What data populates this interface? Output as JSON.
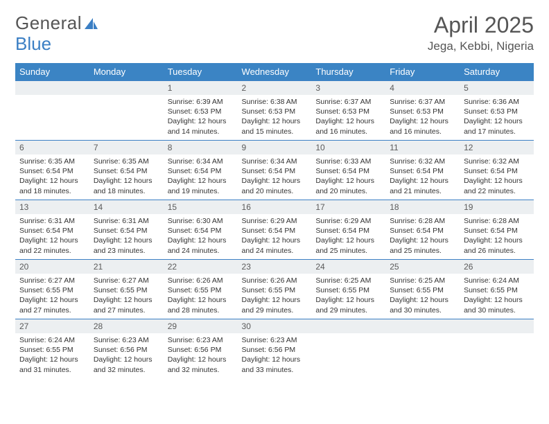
{
  "logo": {
    "text1": "General",
    "text2": "Blue"
  },
  "title": "April 2025",
  "location": "Jega, Kebbi, Nigeria",
  "colors": {
    "header_bg": "#3b84c4",
    "header_text": "#ffffff",
    "daynum_bg": "#eceff1",
    "border": "#3b7fc4",
    "text": "#333333",
    "title_text": "#555555"
  },
  "weekdays": [
    "Sunday",
    "Monday",
    "Tuesday",
    "Wednesday",
    "Thursday",
    "Friday",
    "Saturday"
  ],
  "weeks": [
    [
      null,
      null,
      {
        "n": "1",
        "sr": "Sunrise: 6:39 AM",
        "ss": "Sunset: 6:53 PM",
        "dl": "Daylight: 12 hours and 14 minutes."
      },
      {
        "n": "2",
        "sr": "Sunrise: 6:38 AM",
        "ss": "Sunset: 6:53 PM",
        "dl": "Daylight: 12 hours and 15 minutes."
      },
      {
        "n": "3",
        "sr": "Sunrise: 6:37 AM",
        "ss": "Sunset: 6:53 PM",
        "dl": "Daylight: 12 hours and 16 minutes."
      },
      {
        "n": "4",
        "sr": "Sunrise: 6:37 AM",
        "ss": "Sunset: 6:53 PM",
        "dl": "Daylight: 12 hours and 16 minutes."
      },
      {
        "n": "5",
        "sr": "Sunrise: 6:36 AM",
        "ss": "Sunset: 6:53 PM",
        "dl": "Daylight: 12 hours and 17 minutes."
      }
    ],
    [
      {
        "n": "6",
        "sr": "Sunrise: 6:35 AM",
        "ss": "Sunset: 6:54 PM",
        "dl": "Daylight: 12 hours and 18 minutes."
      },
      {
        "n": "7",
        "sr": "Sunrise: 6:35 AM",
        "ss": "Sunset: 6:54 PM",
        "dl": "Daylight: 12 hours and 18 minutes."
      },
      {
        "n": "8",
        "sr": "Sunrise: 6:34 AM",
        "ss": "Sunset: 6:54 PM",
        "dl": "Daylight: 12 hours and 19 minutes."
      },
      {
        "n": "9",
        "sr": "Sunrise: 6:34 AM",
        "ss": "Sunset: 6:54 PM",
        "dl": "Daylight: 12 hours and 20 minutes."
      },
      {
        "n": "10",
        "sr": "Sunrise: 6:33 AM",
        "ss": "Sunset: 6:54 PM",
        "dl": "Daylight: 12 hours and 20 minutes."
      },
      {
        "n": "11",
        "sr": "Sunrise: 6:32 AM",
        "ss": "Sunset: 6:54 PM",
        "dl": "Daylight: 12 hours and 21 minutes."
      },
      {
        "n": "12",
        "sr": "Sunrise: 6:32 AM",
        "ss": "Sunset: 6:54 PM",
        "dl": "Daylight: 12 hours and 22 minutes."
      }
    ],
    [
      {
        "n": "13",
        "sr": "Sunrise: 6:31 AM",
        "ss": "Sunset: 6:54 PM",
        "dl": "Daylight: 12 hours and 22 minutes."
      },
      {
        "n": "14",
        "sr": "Sunrise: 6:31 AM",
        "ss": "Sunset: 6:54 PM",
        "dl": "Daylight: 12 hours and 23 minutes."
      },
      {
        "n": "15",
        "sr": "Sunrise: 6:30 AM",
        "ss": "Sunset: 6:54 PM",
        "dl": "Daylight: 12 hours and 24 minutes."
      },
      {
        "n": "16",
        "sr": "Sunrise: 6:29 AM",
        "ss": "Sunset: 6:54 PM",
        "dl": "Daylight: 12 hours and 24 minutes."
      },
      {
        "n": "17",
        "sr": "Sunrise: 6:29 AM",
        "ss": "Sunset: 6:54 PM",
        "dl": "Daylight: 12 hours and 25 minutes."
      },
      {
        "n": "18",
        "sr": "Sunrise: 6:28 AM",
        "ss": "Sunset: 6:54 PM",
        "dl": "Daylight: 12 hours and 25 minutes."
      },
      {
        "n": "19",
        "sr": "Sunrise: 6:28 AM",
        "ss": "Sunset: 6:54 PM",
        "dl": "Daylight: 12 hours and 26 minutes."
      }
    ],
    [
      {
        "n": "20",
        "sr": "Sunrise: 6:27 AM",
        "ss": "Sunset: 6:55 PM",
        "dl": "Daylight: 12 hours and 27 minutes."
      },
      {
        "n": "21",
        "sr": "Sunrise: 6:27 AM",
        "ss": "Sunset: 6:55 PM",
        "dl": "Daylight: 12 hours and 27 minutes."
      },
      {
        "n": "22",
        "sr": "Sunrise: 6:26 AM",
        "ss": "Sunset: 6:55 PM",
        "dl": "Daylight: 12 hours and 28 minutes."
      },
      {
        "n": "23",
        "sr": "Sunrise: 6:26 AM",
        "ss": "Sunset: 6:55 PM",
        "dl": "Daylight: 12 hours and 29 minutes."
      },
      {
        "n": "24",
        "sr": "Sunrise: 6:25 AM",
        "ss": "Sunset: 6:55 PM",
        "dl": "Daylight: 12 hours and 29 minutes."
      },
      {
        "n": "25",
        "sr": "Sunrise: 6:25 AM",
        "ss": "Sunset: 6:55 PM",
        "dl": "Daylight: 12 hours and 30 minutes."
      },
      {
        "n": "26",
        "sr": "Sunrise: 6:24 AM",
        "ss": "Sunset: 6:55 PM",
        "dl": "Daylight: 12 hours and 30 minutes."
      }
    ],
    [
      {
        "n": "27",
        "sr": "Sunrise: 6:24 AM",
        "ss": "Sunset: 6:55 PM",
        "dl": "Daylight: 12 hours and 31 minutes."
      },
      {
        "n": "28",
        "sr": "Sunrise: 6:23 AM",
        "ss": "Sunset: 6:56 PM",
        "dl": "Daylight: 12 hours and 32 minutes."
      },
      {
        "n": "29",
        "sr": "Sunrise: 6:23 AM",
        "ss": "Sunset: 6:56 PM",
        "dl": "Daylight: 12 hours and 32 minutes."
      },
      {
        "n": "30",
        "sr": "Sunrise: 6:23 AM",
        "ss": "Sunset: 6:56 PM",
        "dl": "Daylight: 12 hours and 33 minutes."
      },
      null,
      null,
      null
    ]
  ]
}
